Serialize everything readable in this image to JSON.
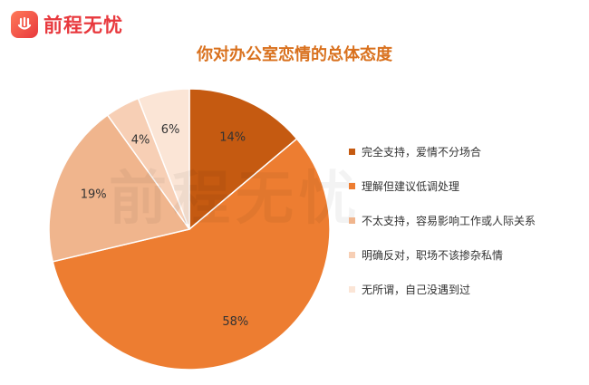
{
  "brand": {
    "name": "前程无忧",
    "icon": "logo-mark-icon",
    "color": "#e8383d"
  },
  "watermark": "前程无忧",
  "chart_data": {
    "type": "pie",
    "title": "你对办公室恋情的总体态度",
    "slices": [
      {
        "label": "完全支持，爱情不分场合",
        "value": 14,
        "display": "14%",
        "color": "#c55a11"
      },
      {
        "label": "理解但建议低调处理",
        "value": 58,
        "display": "58%",
        "color": "#ed7d31"
      },
      {
        "label": "不太支持，容易影响工作或人际关系",
        "value": 19,
        "display": "19%",
        "color": "#f0b58d"
      },
      {
        "label": "明确反对，职场不该掺杂私情",
        "value": 4,
        "display": "4%",
        "color": "#f7cfb5"
      },
      {
        "label": "无所谓，自己没遇到过",
        "value": 6,
        "display": "6%",
        "color": "#fbe5d6"
      }
    ],
    "legend_position": "right"
  }
}
